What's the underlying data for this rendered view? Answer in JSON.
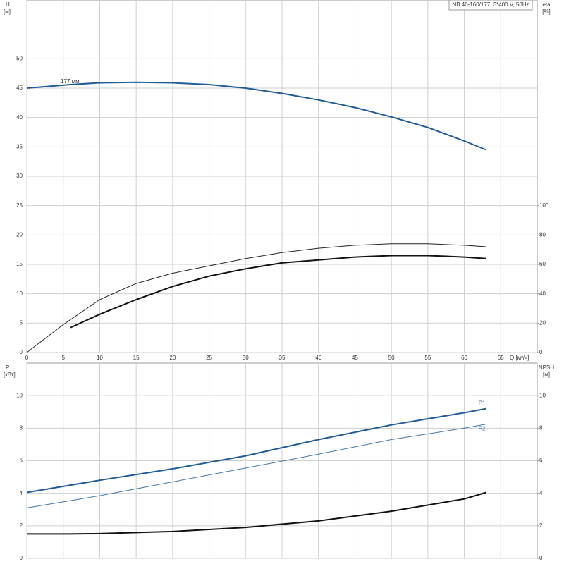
{
  "chart_data": [
    {
      "type": "line",
      "title": "NB 40-160/177, 3*400 V, 50Hz",
      "ylabel": "H",
      "yunit": "[м]",
      "y2label": "eta",
      "y2unit": "[%]",
      "xlabel": "Q [м³/ч]",
      "annotation": "177 мм",
      "xlim": [
        0,
        70
      ],
      "xticks": [
        0,
        5,
        10,
        15,
        20,
        25,
        30,
        35,
        40,
        45,
        50,
        55,
        60,
        65
      ],
      "xtick_labels": true,
      "ylim": [
        0,
        60
      ],
      "yticks": [
        0,
        5,
        10,
        15,
        20,
        25,
        30,
        35,
        40,
        45,
        50
      ],
      "y2lim": [
        0,
        240
      ],
      "y2ticks": [
        0,
        20,
        40,
        60,
        80,
        100
      ],
      "grid": true,
      "series": [
        {
          "color": "#1f5b99",
          "line_width": 2,
          "axis": "y",
          "x": [
            0,
            6,
            10,
            15,
            20,
            25,
            30,
            35,
            40,
            45,
            50,
            55,
            60,
            63
          ],
          "values": [
            45,
            45.6,
            45.9,
            46,
            45.9,
            45.6,
            45,
            44.1,
            43,
            41.7,
            40.1,
            38.3,
            36,
            34.5
          ]
        },
        {
          "color": "#222222",
          "line_width": 1,
          "axis": "y2",
          "x": [
            0,
            5,
            10,
            15,
            20,
            25,
            30,
            35,
            40,
            45,
            50,
            55,
            60,
            63
          ],
          "values": [
            0,
            19,
            36,
            47,
            54,
            59,
            64,
            68,
            71,
            73,
            74,
            74,
            73,
            72
          ]
        },
        {
          "color": "#111111",
          "line_width": 2,
          "axis": "y2",
          "x": [
            6,
            10,
            15,
            20,
            25,
            30,
            35,
            40,
            45,
            50,
            55,
            60,
            63
          ],
          "values": [
            17,
            26,
            36,
            45,
            52,
            57,
            61,
            63,
            65,
            66,
            66,
            65,
            64
          ]
        }
      ]
    },
    {
      "type": "line",
      "ylabel": "P",
      "yunit": "[кВт]",
      "y2label": "NPSH",
      "y2unit": "[м]",
      "xlim": [
        0,
        70
      ],
      "xticks": [
        0,
        5,
        10,
        15,
        20,
        25,
        30,
        35,
        40,
        45,
        50,
        55,
        60,
        65
      ],
      "xtick_labels": false,
      "ylim": [
        0,
        12
      ],
      "yticks": [
        0,
        2,
        4,
        6,
        8,
        10
      ],
      "y2lim": [
        0,
        12
      ],
      "y2ticks": [
        0,
        2,
        4,
        6,
        8,
        10
      ],
      "grid": true,
      "series": [
        {
          "name": "P1",
          "color": "#1f5b99",
          "line_width": 2,
          "axis": "y",
          "x": [
            0,
            6,
            10,
            20,
            30,
            40,
            50,
            60,
            63
          ],
          "values": [
            4.05,
            4.5,
            4.8,
            5.5,
            6.3,
            7.3,
            8.2,
            8.95,
            9.2
          ]
        },
        {
          "name": "P2",
          "color": "#3f77b0",
          "line_width": 1,
          "axis": "y",
          "x": [
            0,
            6,
            10,
            20,
            30,
            40,
            50,
            60,
            63
          ],
          "values": [
            3.1,
            3.55,
            3.85,
            4.7,
            5.55,
            6.4,
            7.3,
            8.0,
            8.25
          ]
        },
        {
          "color": "#111111",
          "line_width": 2,
          "axis": "y2",
          "x": [
            0,
            6,
            10,
            20,
            30,
            40,
            50,
            60,
            63
          ],
          "values": [
            1.5,
            1.5,
            1.52,
            1.65,
            1.9,
            2.3,
            2.9,
            3.65,
            4.05
          ]
        }
      ]
    }
  ]
}
